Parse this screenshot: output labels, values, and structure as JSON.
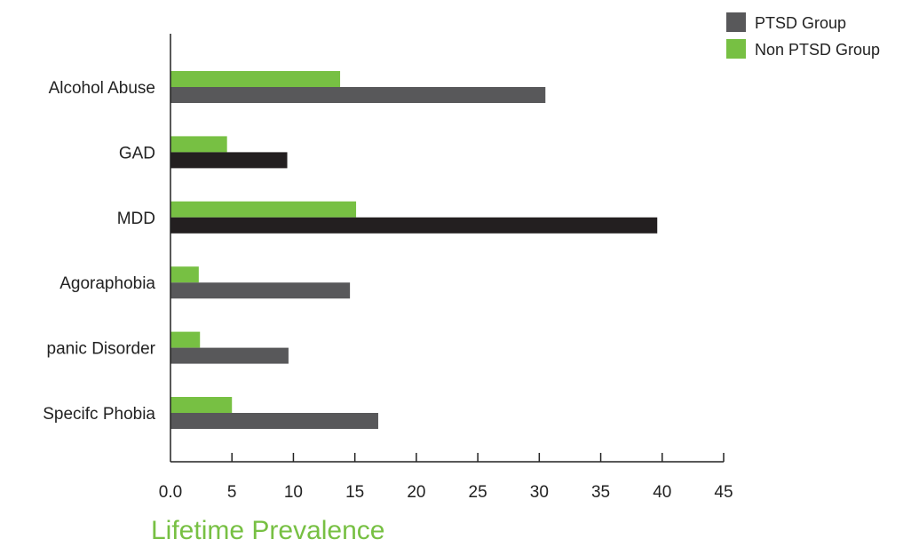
{
  "chart_data": {
    "type": "bar",
    "orientation": "horizontal",
    "title": "",
    "xlabel": "Lifetime Prevalence",
    "ylabel": "",
    "categories": [
      "Alcohol Abuse",
      "GAD",
      "MDD",
      "Agoraphobia",
      "panic Disorder",
      "Specifc Phobia"
    ],
    "series": [
      {
        "name": "Non PTSD Group",
        "color": "#77c043",
        "values": [
          13.8,
          4.6,
          15.1,
          2.3,
          2.4,
          5.0
        ]
      },
      {
        "name": "PTSD Group",
        "color": "#58585a",
        "values": [
          30.5,
          9.5,
          39.6,
          14.6,
          9.6,
          16.9
        ],
        "bar_colors": [
          "#58585a",
          "#231f20",
          "#231f20",
          "#58585a",
          "#58585a",
          "#58585a"
        ]
      }
    ],
    "xlim": [
      0,
      45
    ],
    "x_ticks": [
      "0.0",
      "5",
      "10",
      "15",
      "20",
      "25",
      "30",
      "35",
      "40",
      "45"
    ],
    "grid": false,
    "legend_position": "top-right",
    "legend": [
      {
        "name": "PTSD Group",
        "color": "#58585a"
      },
      {
        "name": "Non PTSD Group",
        "color": "#77c043"
      }
    ],
    "xlabel_color": "#77c043"
  }
}
